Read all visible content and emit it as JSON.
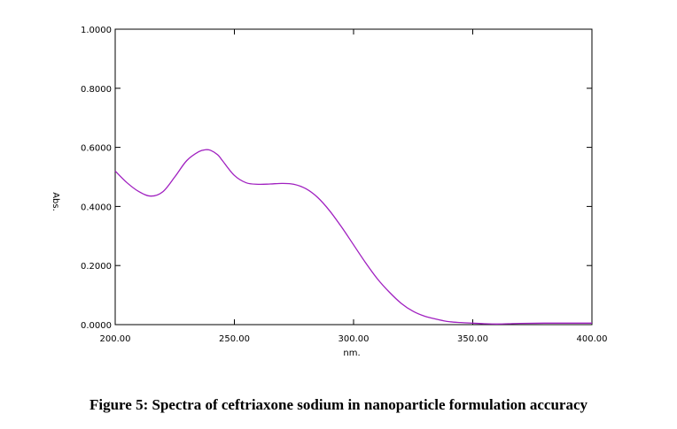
{
  "figure": {
    "caption": "Figure 5: Spectra of ceftriaxone sodium in nanoparticle formulation accuracy"
  },
  "chart_data": {
    "type": "line",
    "xlabel": "nm.",
    "ylabel": "Abs.",
    "xlim": [
      200,
      400
    ],
    "ylim": [
      0,
      1
    ],
    "x_ticks": [
      "200.00",
      "250.00",
      "300.00",
      "350.00",
      "400.00"
    ],
    "y_ticks": [
      "0.0000",
      "0.2000",
      "0.4000",
      "0.6000",
      "0.8000",
      "1.0000"
    ],
    "grid": false,
    "line_color": "#a020c0",
    "series": [
      {
        "x": [
          200,
          205,
          210,
          215,
          220,
          225,
          230,
          235,
          238,
          240,
          243,
          245,
          250,
          255,
          260,
          265,
          270,
          275,
          280,
          285,
          290,
          295,
          300,
          305,
          310,
          315,
          320,
          325,
          330,
          335,
          340,
          345,
          350,
          355,
          360,
          365,
          370,
          380,
          390,
          400
        ],
        "y": [
          0.52,
          0.48,
          0.45,
          0.435,
          0.45,
          0.5,
          0.555,
          0.585,
          0.592,
          0.59,
          0.575,
          0.555,
          0.505,
          0.48,
          0.475,
          0.476,
          0.478,
          0.475,
          0.46,
          0.43,
          0.385,
          0.33,
          0.27,
          0.21,
          0.155,
          0.11,
          0.072,
          0.045,
          0.028,
          0.018,
          0.01,
          0.007,
          0.005,
          0.003,
          0.002,
          0.003,
          0.004,
          0.005,
          0.005,
          0.005
        ]
      }
    ]
  }
}
